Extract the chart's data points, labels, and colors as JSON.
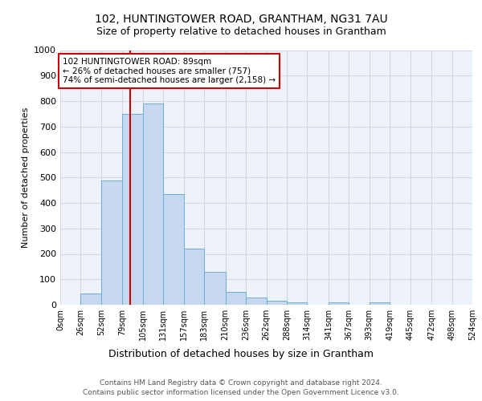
{
  "title1": "102, HUNTINGTOWER ROAD, GRANTHAM, NG31 7AU",
  "title2": "Size of property relative to detached houses in Grantham",
  "xlabel": "Distribution of detached houses by size in Grantham",
  "ylabel": "Number of detached properties",
  "footnote1": "Contains HM Land Registry data © Crown copyright and database right 2024.",
  "footnote2": "Contains public sector information licensed under the Open Government Licence v3.0.",
  "bin_edges": [
    0,
    26,
    52,
    79,
    105,
    131,
    157,
    183,
    210,
    236,
    262,
    288,
    314,
    341,
    367,
    393,
    419,
    445,
    472,
    498,
    524
  ],
  "bar_heights": [
    0,
    45,
    487,
    750,
    790,
    435,
    220,
    130,
    50,
    28,
    15,
    10,
    0,
    8,
    0,
    8,
    0,
    0,
    0,
    0
  ],
  "bar_color": "#c5d8f0",
  "bar_edge_color": "#6aaed6",
  "property_size": 89,
  "red_line_color": "#cc0000",
  "ylim": [
    0,
    1000
  ],
  "yticks": [
    0,
    100,
    200,
    300,
    400,
    500,
    600,
    700,
    800,
    900,
    1000
  ],
  "annotation_text": "102 HUNTINGTOWER ROAD: 89sqm\n← 26% of detached houses are smaller (757)\n74% of semi-detached houses are larger (2,158) →",
  "annotation_box_color": "#ffffff",
  "annotation_box_edge": "#cc0000",
  "grid_color": "#d0d8e8",
  "background_color": "#eef2fb"
}
